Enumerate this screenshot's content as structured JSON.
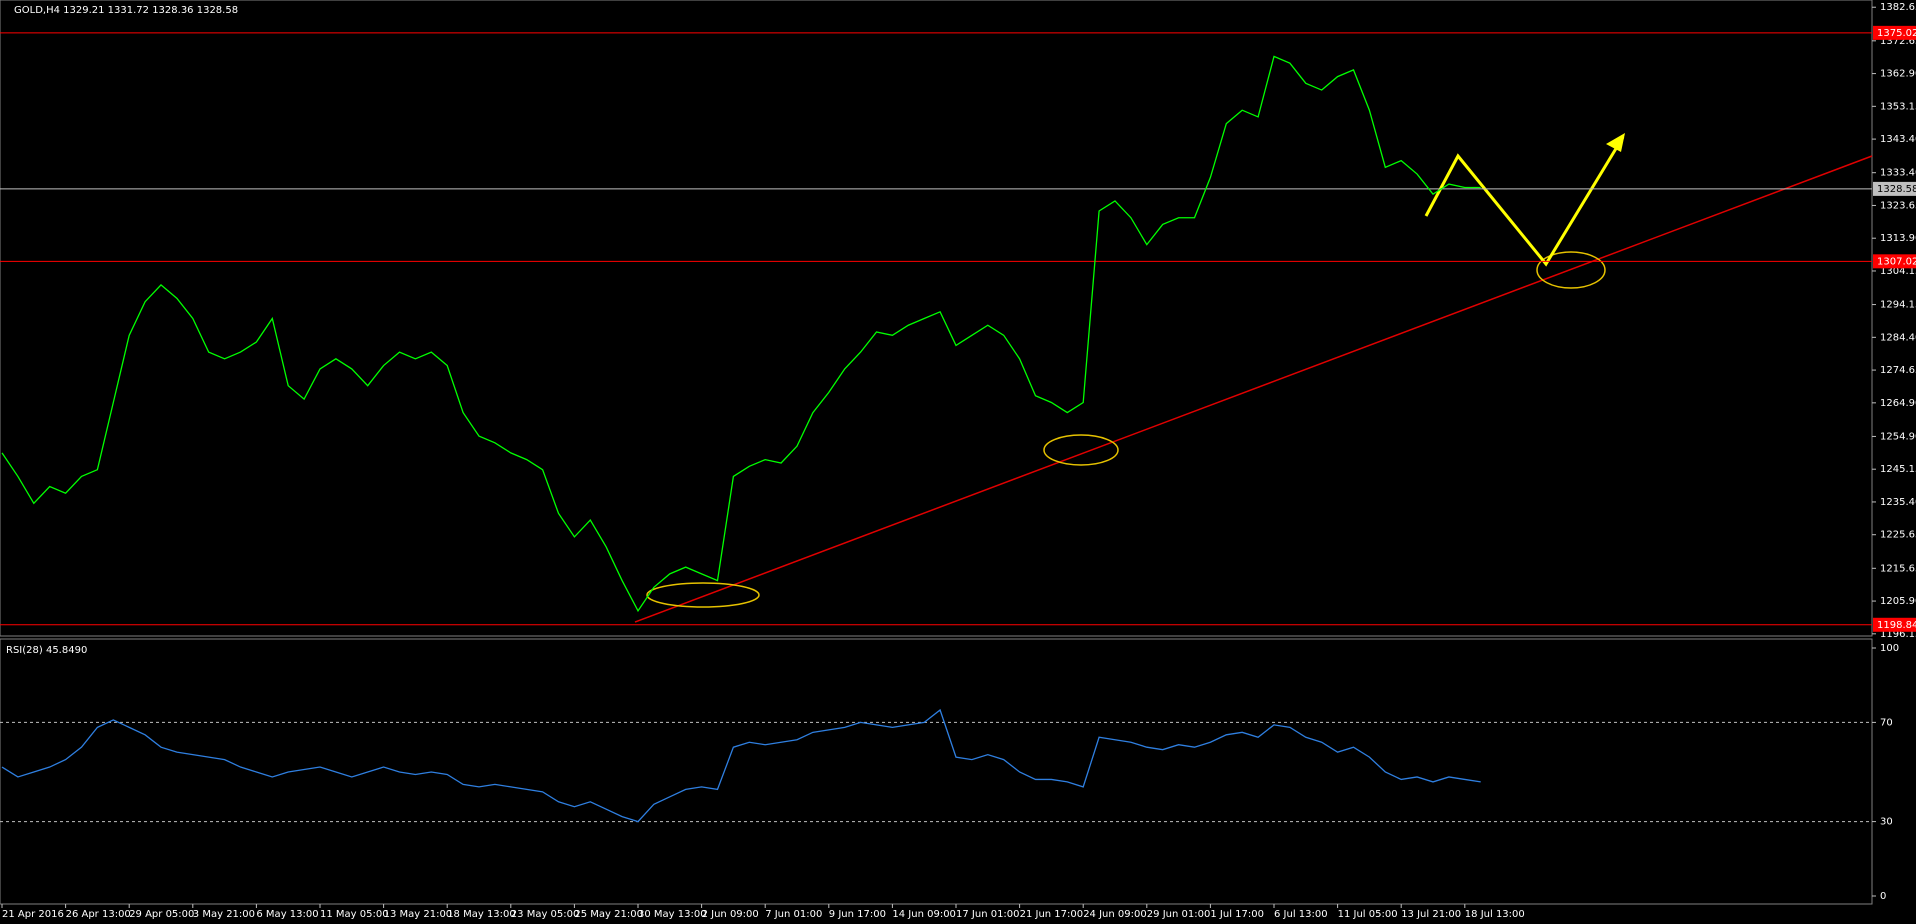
{
  "chart_data": [
    {
      "type": "line",
      "title": "GOLD,H4  1329.21 1331.72 1328.36 1328.58",
      "categories": [
        "21 Apr 2016",
        null,
        null,
        null,
        "26 Apr 13:00",
        null,
        null,
        null,
        "29 Apr 05:00",
        null,
        null,
        null,
        "3 May 21:00",
        null,
        null,
        null,
        "6 May 13:00",
        null,
        null,
        null,
        "11 May 05:00",
        null,
        null,
        null,
        "13 May 21:00",
        null,
        null,
        null,
        "18 May 13:00",
        null,
        null,
        null,
        "23 May 05:00",
        null,
        null,
        null,
        "25 May 21:00",
        null,
        null,
        null,
        "30 May 13:00",
        null,
        null,
        null,
        "2 Jun 09:00",
        null,
        null,
        null,
        "7 Jun 01:00",
        null,
        null,
        null,
        "9 Jun 17:00",
        null,
        null,
        null,
        "14 Jun 09:00",
        null,
        null,
        null,
        "17 Jun 01:00",
        null,
        null,
        null,
        "21 Jun 17:00",
        null,
        null,
        null,
        "24 Jun 09:00",
        null,
        null,
        null,
        "29 Jun 01:00",
        null,
        null,
        null,
        "1 Jul 17:00",
        null,
        null,
        null,
        "6 Jul 13:00",
        null,
        null,
        null,
        "11 Jul 05:00",
        null,
        null,
        null,
        "13 Jul 21:00",
        null,
        null,
        null,
        "18 Jul 13:00",
        null
      ],
      "series": [
        {
          "color": "#00ff00",
          "values": [
            1250,
            1243,
            1235,
            1240,
            1238,
            1243,
            1245,
            1265,
            1285,
            1295,
            1300,
            1296,
            1290,
            1280,
            1278,
            1280,
            1283,
            1290,
            1270,
            1266,
            1275,
            1278,
            1275,
            1270,
            1276,
            1280,
            1278,
            1280,
            1276,
            1262,
            1255,
            1253,
            1250,
            1248,
            1245,
            1232,
            1225,
            1230,
            1222,
            1212,
            1203,
            1210,
            1214,
            1216,
            1214,
            1212,
            1243,
            1246,
            1248,
            1247,
            1252,
            1262,
            1268,
            1275,
            1280,
            1286,
            1285,
            1288,
            1290,
            1292,
            1282,
            1285,
            1288,
            1285,
            1278,
            1267,
            1265,
            1262,
            1265,
            1322,
            1325,
            1320,
            1312,
            1318,
            1320,
            1320,
            1332,
            1348,
            1352,
            1350,
            1368,
            1366,
            1360,
            1358,
            1362,
            1364,
            1352,
            1335,
            1337,
            1333,
            1327,
            1330,
            1329,
            1329
          ]
        }
      ],
      "ylim": [
        1195.8,
        1384.8
      ],
      "yticks": [
        1382.65,
        1372.65,
        {
          "value": 1362.9,
          "label": "1362.90"
        },
        1353.15,
        {
          "value": 1343.4,
          "label": "1343.40"
        },
        {
          "value": 1333.4,
          "label": "1333.40"
        },
        1323.65,
        {
          "value": 1313.9,
          "label": "1313.90"
        },
        1304.15,
        1294.15,
        {
          "value": 1284.4,
          "label": "1284.40"
        },
        1274.65,
        {
          "value": 1264.9,
          "label": "1264.90"
        },
        {
          "value": 1254.9,
          "label": "1254.90"
        },
        1245.15,
        {
          "value": 1235.4,
          "label": "1235.40"
        },
        1225.65,
        1215.65,
        {
          "value": 1205.9,
          "label": "1205.90"
        },
        1196.15
      ],
      "levels": [
        {
          "value": 1375.02,
          "color": "#ff0000"
        },
        {
          "value": 1328.58,
          "color": "#c0c0c0"
        },
        {
          "value": 1307.02,
          "color": "#ff0000"
        },
        {
          "value": 1198.84,
          "color": "#ff0000"
        }
      ]
    },
    {
      "type": "line",
      "title": "RSI(28) 45.8490",
      "series": [
        {
          "color": "#2f7fe0",
          "values": [
            52,
            48,
            50,
            52,
            55,
            60,
            68,
            71,
            68,
            65,
            60,
            58,
            57,
            56,
            55,
            52,
            50,
            48,
            50,
            51,
            52,
            50,
            48,
            50,
            52,
            50,
            49,
            50,
            49,
            45,
            44,
            45,
            44,
            43,
            42,
            38,
            36,
            38,
            35,
            32,
            30,
            37,
            40,
            43,
            44,
            43,
            60,
            62,
            61,
            62,
            63,
            66,
            67,
            68,
            70,
            69,
            68,
            69,
            70,
            75,
            56,
            55,
            57,
            55,
            50,
            47,
            47,
            46,
            44,
            64,
            63,
            62,
            60,
            59,
            61,
            60,
            62,
            65,
            66,
            64,
            69,
            68,
            64,
            62,
            58,
            60,
            56,
            50,
            47,
            48,
            46,
            48,
            47,
            46
          ]
        }
      ],
      "ylim": [
        0,
        100
      ],
      "yticks": [
        100,
        70,
        30,
        0
      ],
      "dashed": [
        70,
        30
      ]
    }
  ]
}
